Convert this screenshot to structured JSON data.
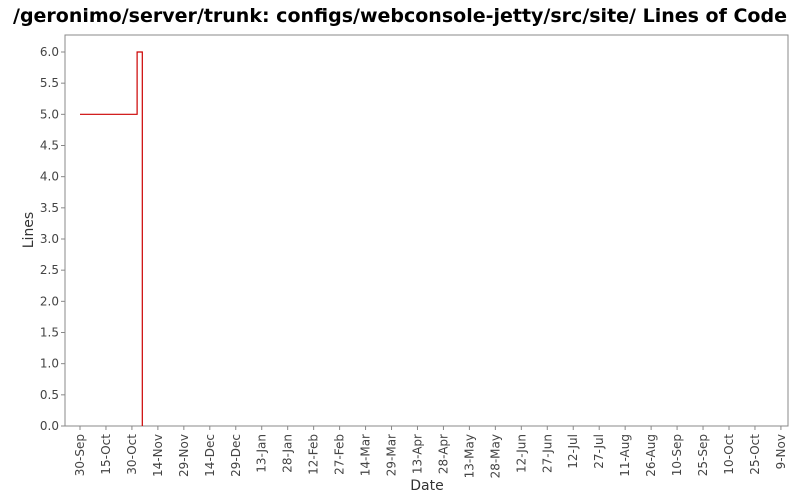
{
  "chart_data": {
    "type": "line",
    "title": "/geronimo/server/trunk: configs/webconsole-jetty/src/site/ Lines of Code",
    "xlabel": "Date",
    "ylabel": "Lines",
    "ylim": [
      0.0,
      6.0
    ],
    "y_ticks": [
      "0.0",
      "0.5",
      "1.0",
      "1.5",
      "2.0",
      "2.5",
      "3.0",
      "3.5",
      "4.0",
      "4.5",
      "5.0",
      "5.5",
      "6.0"
    ],
    "x_ticks": [
      "30-Sep",
      "15-Oct",
      "30-Oct",
      "14-Nov",
      "29-Nov",
      "14-Dec",
      "29-Dec",
      "13-Jan",
      "28-Jan",
      "12-Feb",
      "27-Feb",
      "14-Mar",
      "29-Mar",
      "13-Apr",
      "28-Apr",
      "13-May",
      "28-May",
      "12-Jun",
      "27-Jun",
      "12-Jul",
      "27-Jul",
      "11-Aug",
      "26-Aug",
      "10-Sep",
      "25-Sep",
      "10-Oct",
      "25-Oct",
      "9-Nov"
    ],
    "step": true,
    "grid": false,
    "line_color": "#cc0000",
    "series": [
      {
        "points": [
          {
            "x": "30-Sep",
            "y": 5.0
          },
          {
            "x": "2-Nov",
            "y": 5.0
          },
          {
            "x": "2-Nov",
            "y": 6.0
          },
          {
            "x": "5-Nov",
            "y": 6.0
          },
          {
            "x": "5-Nov",
            "y": 0.0
          }
        ]
      }
    ]
  }
}
